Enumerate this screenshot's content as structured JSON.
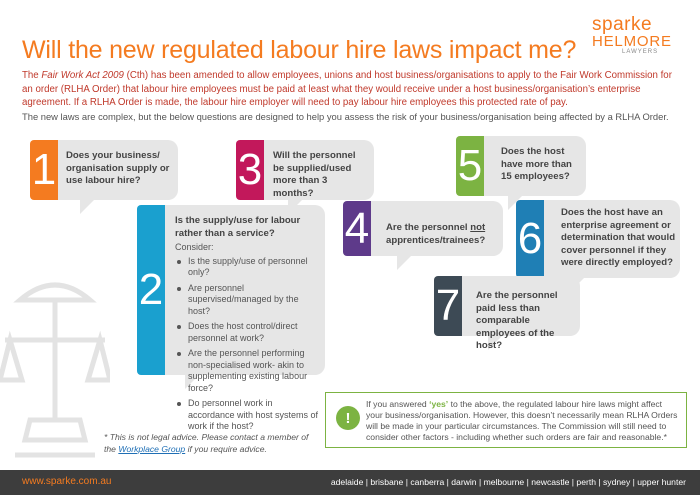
{
  "title": "Will the new regulated labour hire laws impact me?",
  "logo": {
    "line1": "sparke",
    "line2": "HELMORE",
    "line3": "LAWYERS"
  },
  "intro": {
    "part1": "The ",
    "act": "Fair Work Act 2009",
    "part2": " (Cth) has been amended to allow employees, unions and host business/organisations to apply to the Fair Work Commission for an order (RLHA Order) that labour hire employees must be paid at least what they would receive under a host business/organisation’s enterprise agreement. If a RLHA Order is made, the labour hire employer will need to pay labour hire employees this protected rate of pay."
  },
  "intro2": "The new laws are complex, but the below questions are designed to help you assess the risk of your business/organisation being affected by a RLHA Order.",
  "questions": [
    {
      "num": "1",
      "color": "#f47b20",
      "text": "Does your business/ organisation supply or use labour hire?"
    },
    {
      "num": "2",
      "color": "#1aa0cf",
      "text": "Is the supply/use for labour rather than a service?"
    },
    {
      "num": "3",
      "color": "#c2185b",
      "text": "Will the personnel be supplied/used more than 3 months?"
    },
    {
      "num": "4",
      "color": "#5e3a8a",
      "text_pre": "Are the personnel ",
      "text_u": "not",
      "text_post": " apprentices/trainees?"
    },
    {
      "num": "5",
      "color": "#7cb342",
      "text": "Does the host have more than 15 employees?"
    },
    {
      "num": "6",
      "color": "#1f7fb5",
      "text": "Does the host have an enterprise agreement or determination that would cover personnel if they were directly employed?"
    },
    {
      "num": "7",
      "color": "#3d4a55",
      "text": "Are the personnel paid less than comparable employees of the host?"
    }
  ],
  "consider": {
    "label": "Consider:",
    "items": [
      "Is the supply/use of personnel only?",
      "Are personnel supervised/managed by the host?",
      "Does the host control/direct personnel at work?",
      "Are the personnel performing non-specialised work- akin to supplementing existing labour force?",
      "Do personnel work in accordance with host systems of work if the host?"
    ]
  },
  "info": {
    "icon": "!",
    "pre": "If you answered ",
    "yes": "‘yes’",
    "post": " to the above, the regulated labour hire laws might affect your business/organisation. However, this doesn’t necessarily mean RLHA Orders will be made in your particular circumstances. The Commission will still need to consider other factors - including whether such orders are fair and reasonable.*"
  },
  "disclaimer": {
    "pre": "* This is not legal advice. Please contact a member of the ",
    "link": "Workplace Group",
    "post": " if you require advice."
  },
  "footer": {
    "website": "www.sparke.com.au",
    "cities": "adelaide | brisbane | canberra | darwin | melbourne | newcastle | perth | sydney | upper hunter"
  }
}
